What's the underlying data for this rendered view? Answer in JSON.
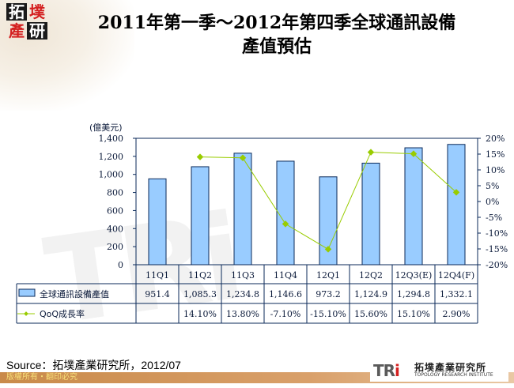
{
  "header": {
    "logo_chars": [
      "拓",
      "墣",
      "產",
      "研"
    ],
    "title_line1": "2011年第一季～2012年第四季全球通訊設備",
    "title_line2": "產值預估"
  },
  "chart_data": {
    "type": "bar",
    "title": "2011年第一季～2012年第四季全球通訊設備產值預估",
    "categories": [
      "11Q1",
      "11Q2",
      "11Q3",
      "11Q4",
      "12Q1",
      "12Q2",
      "12Q3(E)",
      "12Q4(F)"
    ],
    "unit_label": "(億美元)",
    "y_left": {
      "ticks": [
        "0",
        "200",
        "400",
        "600",
        "800",
        "1,000",
        "1,200",
        "1,400"
      ],
      "ylim": [
        0,
        1400
      ]
    },
    "y_right": {
      "ticks": [
        "-20%",
        "-15%",
        "-10%",
        "-5%",
        "0%",
        "5%",
        "10%",
        "15%",
        "20%"
      ],
      "ylim": [
        -20,
        20
      ]
    },
    "series": [
      {
        "name": "全球通訊設備產值",
        "type": "bar",
        "axis": "left",
        "color": "#99ccff",
        "values": [
          951.4,
          1085.3,
          1234.8,
          1146.6,
          973.2,
          1124.9,
          1294.8,
          1332.1
        ],
        "labels": [
          "951.4",
          "1,085.3",
          "1,234.8",
          "1,146.6",
          "973.2",
          "1,124.9",
          "1,294.8",
          "1,332.1"
        ]
      },
      {
        "name": "QoQ成長率",
        "type": "line",
        "axis": "right",
        "color": "#99cc00",
        "values": [
          null,
          14.1,
          13.8,
          -7.1,
          -15.1,
          15.6,
          15.1,
          2.9
        ],
        "labels": [
          "",
          "14.10%",
          "13.80%",
          "-7.10%",
          "-15.10%",
          "15.60%",
          "15.10%",
          "2.90%"
        ]
      }
    ],
    "legend_position": "data-table",
    "grid": false
  },
  "footer": {
    "source": "Source：拓墣產業研究所，2012/07",
    "copyright": "版權所有・翻印必究",
    "brand_mark": "TRi",
    "brand_cn": "拓墣產業研究所",
    "brand_en": "TOPOLOGY RESEARCH INSTITUTE"
  },
  "watermark": "TRi"
}
